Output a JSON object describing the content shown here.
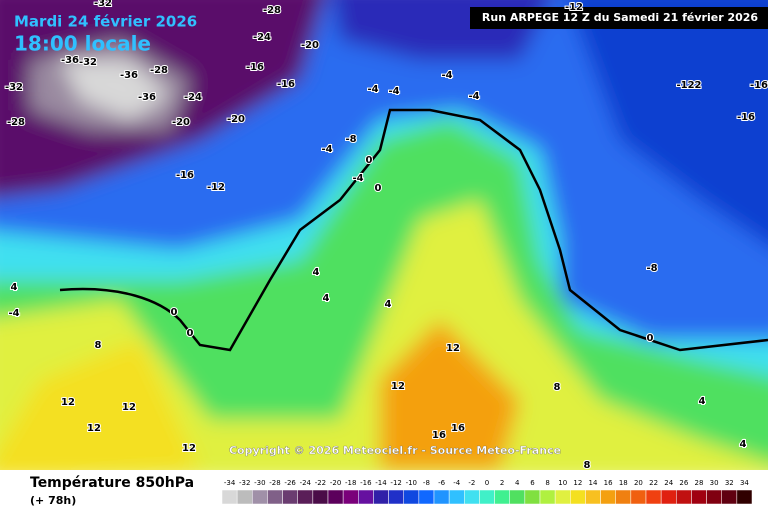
{
  "header": {
    "date": "Mardi 24 février 2026",
    "time": "18:00 locale",
    "run": "Run ARPEGE 12 Z du Samedi 21 février 2026"
  },
  "copyright": "Copyright © 2026 Meteociel.fr - Source Meteo-France",
  "footer": {
    "title": "Température 850hPa",
    "lead": "(+ 78h)"
  },
  "scale": {
    "values": [
      -34,
      -32,
      -30,
      -28,
      -26,
      -24,
      -22,
      -20,
      -18,
      -16,
      -14,
      -12,
      -10,
      -8,
      -6,
      -4,
      -2,
      0,
      2,
      4,
      6,
      8,
      10,
      12,
      14,
      16,
      18,
      20,
      22,
      24,
      26,
      28,
      30,
      32,
      34
    ],
    "colors": [
      "#d8d8d8",
      "#bcbcbc",
      "#a090a8",
      "#806088",
      "#6a3c70",
      "#5a1e58",
      "#4a0c48",
      "#5c005c",
      "#7a007a",
      "#6610a0",
      "#3020a8",
      "#2030c8",
      "#1048e0",
      "#1068ff",
      "#2094ff",
      "#30c0ff",
      "#40e0f0",
      "#40f0c8",
      "#40f090",
      "#50e060",
      "#80e040",
      "#b0f040",
      "#e0f040",
      "#f4e020",
      "#f8c020",
      "#f4a010",
      "#f08010",
      "#f06010",
      "#f04010",
      "#e02010",
      "#c01010",
      "#a00010",
      "#800010",
      "#600010",
      "#300000"
    ]
  },
  "map_labels": [
    "-28",
    "-24",
    "-20",
    "-32",
    "-36",
    "-32",
    "-36",
    "-28",
    "-36",
    "-24",
    "-20",
    "-20",
    "-16",
    "-16",
    "-28",
    "-32",
    "-16",
    "-12",
    "-4",
    "-4",
    "-4",
    "-4",
    "-8",
    "-4",
    "-4",
    "0",
    "0",
    "-12",
    "-122",
    "-16",
    "-16",
    "-8",
    "0",
    "4",
    "4",
    "4",
    "8",
    "12",
    "12",
    "12",
    "12",
    "12",
    "12",
    "16",
    "16",
    "8",
    "4",
    "4",
    "8",
    "4",
    "-4",
    "0",
    "0"
  ]
}
